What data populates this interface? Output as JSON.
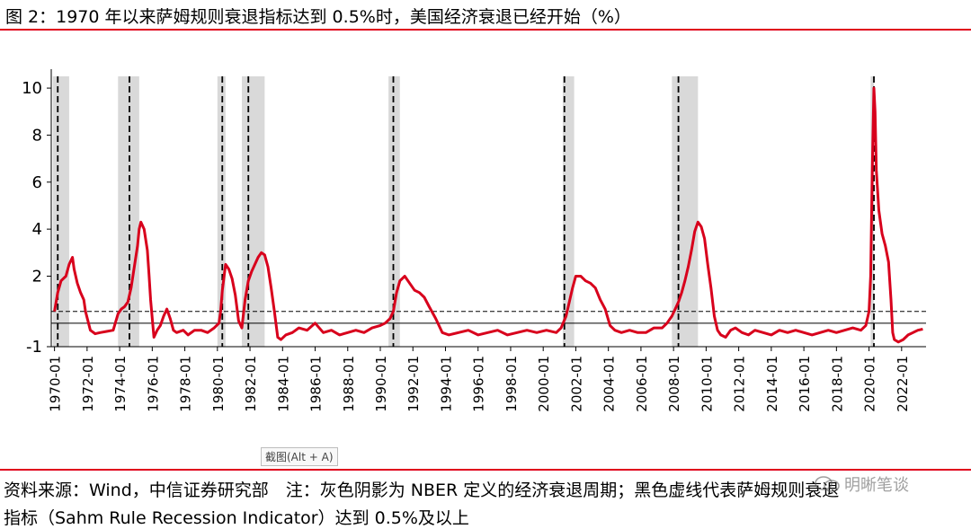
{
  "title": "图 2：1970 年以来萨姆规则衰退指标达到 0.5%时，美国经济衰退已经开始（%）",
  "tooltip": "截图(Alt + A)",
  "source": "资料来源：Wind，中信证券研究部　注：灰色阴影为 NBER 定义的经济衰退周期；黑色虚线代表萨姆规则衰退",
  "note": "指标（Sahm Rule Recession Indicator）达到 0.5%及以上",
  "watermark": "明晰笔谈",
  "colors": {
    "accent": "#e0001b",
    "series": "#d8001c",
    "shade": "#d9d9d9"
  },
  "chart_data": {
    "type": "line",
    "ylim": [
      -1,
      10.5
    ],
    "yticks": [
      -1,
      2,
      4,
      6,
      8,
      10
    ],
    "yticklabels": [
      "-1",
      "2",
      "4",
      "6",
      "8",
      "10"
    ],
    "xlim": [
      1969.8,
      2023.5
    ],
    "xticks": [
      1970,
      1972,
      1974,
      1976,
      1978,
      1980,
      1982,
      1984,
      1986,
      1988,
      1990,
      1992,
      1994,
      1996,
      1998,
      2000,
      2002,
      2004,
      2006,
      2008,
      2010,
      2012,
      2014,
      2016,
      2018,
      2020,
      2022
    ],
    "xticklabels": [
      "1970-01",
      "1972-01",
      "1974-01",
      "1976-01",
      "1978-01",
      "1980-01",
      "1982-01",
      "1984-01",
      "1986-01",
      "1988-01",
      "1990-01",
      "1992-01",
      "1994-01",
      "1996-01",
      "1998-01",
      "2000-01",
      "2002-01",
      "2004-01",
      "2006-01",
      "2008-01",
      "2010-01",
      "2012-01",
      "2014-01",
      "2016-01",
      "2018-01",
      "2020-01",
      "2022-01"
    ],
    "threshold": 0.5,
    "recessions": [
      [
        1969.9,
        1970.9
      ],
      [
        1973.9,
        1975.2
      ],
      [
        1980.0,
        1980.5
      ],
      [
        1981.5,
        1982.9
      ],
      [
        1990.5,
        1991.2
      ],
      [
        2001.2,
        2001.9
      ],
      [
        2007.9,
        2009.5
      ],
      [
        2020.1,
        2020.3
      ]
    ],
    "trigger_dates": [
      1970.2,
      1974.6,
      1980.3,
      1981.9,
      1990.8,
      2001.3,
      2008.3,
      2020.3
    ],
    "series": [
      {
        "x": [
          1970.0,
          1970.2,
          1970.4,
          1970.7,
          1970.9,
          1971.1,
          1971.2,
          1971.4,
          1971.6,
          1971.8,
          1971.9,
          1972.2,
          1972.5,
          1972.8,
          1973.2,
          1973.6,
          1973.9,
          1974.1,
          1974.3,
          1974.5,
          1974.7,
          1974.9,
          1975.1,
          1975.2,
          1975.3,
          1975.5,
          1975.7,
          1975.8,
          1975.9,
          1976.1,
          1976.3,
          1976.5,
          1976.7,
          1976.9,
          1977.1,
          1977.3,
          1977.5,
          1977.9,
          1978.2,
          1978.6,
          1979.0,
          1979.4,
          1979.8,
          1980.1,
          1980.2,
          1980.3,
          1980.5,
          1980.7,
          1980.9,
          1981.1,
          1981.3,
          1981.5,
          1981.7,
          1981.9,
          1982.1,
          1982.3,
          1982.5,
          1982.7,
          1982.9,
          1983.1,
          1983.3,
          1983.5,
          1983.7,
          1983.9,
          1984.2,
          1984.6,
          1985.0,
          1985.5,
          1986.0,
          1986.5,
          1987.0,
          1987.5,
          1988.0,
          1988.5,
          1989.0,
          1989.5,
          1990.0,
          1990.3,
          1990.6,
          1990.8,
          1991.0,
          1991.2,
          1991.5,
          1991.8,
          1992.1,
          1992.4,
          1992.7,
          1993.0,
          1993.4,
          1993.8,
          1994.2,
          1994.8,
          1995.4,
          1996.0,
          1996.6,
          1997.2,
          1997.8,
          1998.4,
          1999.0,
          1999.6,
          2000.2,
          2000.8,
          2001.1,
          2001.4,
          2001.6,
          2001.8,
          2002.0,
          2002.3,
          2002.6,
          2002.9,
          2003.2,
          2003.5,
          2003.8,
          2004.1,
          2004.4,
          2004.8,
          2005.3,
          2005.8,
          2006.3,
          2006.8,
          2007.3,
          2007.6,
          2007.9,
          2008.1,
          2008.3,
          2008.5,
          2008.7,
          2008.9,
          2009.1,
          2009.3,
          2009.5,
          2009.7,
          2009.9,
          2010.1,
          2010.3,
          2010.5,
          2010.7,
          2010.9,
          2011.2,
          2011.5,
          2011.8,
          2012.2,
          2012.6,
          2013.0,
          2013.5,
          2014.0,
          2014.5,
          2015.0,
          2015.5,
          2016.0,
          2016.5,
          2017.0,
          2017.5,
          2018.0,
          2018.5,
          2019.0,
          2019.5,
          2019.8,
          2020.0,
          2020.1,
          2020.2,
          2020.3,
          2020.37,
          2020.45,
          2020.6,
          2020.8,
          2021.0,
          2021.2,
          2021.35,
          2021.45,
          2021.55,
          2021.8,
          2022.1,
          2022.4,
          2022.7,
          2023.0,
          2023.3
        ],
        "y": [
          0.5,
          1.3,
          1.8,
          2.0,
          2.5,
          2.8,
          2.3,
          1.7,
          1.3,
          1.0,
          0.5,
          -0.3,
          -0.45,
          -0.4,
          -0.35,
          -0.3,
          0.4,
          0.6,
          0.7,
          0.9,
          1.5,
          2.4,
          3.3,
          4.0,
          4.3,
          4.0,
          3.1,
          2.1,
          1.0,
          -0.6,
          -0.3,
          -0.1,
          0.3,
          0.6,
          0.2,
          -0.3,
          -0.4,
          -0.3,
          -0.5,
          -0.3,
          -0.3,
          -0.4,
          -0.2,
          0.0,
          0.5,
          1.4,
          2.5,
          2.3,
          1.9,
          1.2,
          0.1,
          -0.2,
          1.0,
          1.8,
          2.2,
          2.5,
          2.8,
          3.0,
          2.9,
          2.4,
          1.5,
          0.5,
          -0.6,
          -0.7,
          -0.5,
          -0.4,
          -0.2,
          -0.3,
          0.0,
          -0.4,
          -0.3,
          -0.5,
          -0.4,
          -0.3,
          -0.4,
          -0.2,
          -0.1,
          0.0,
          0.2,
          0.5,
          1.3,
          1.8,
          2.0,
          1.7,
          1.4,
          1.3,
          1.1,
          0.7,
          0.2,
          -0.4,
          -0.5,
          -0.4,
          -0.3,
          -0.5,
          -0.4,
          -0.3,
          -0.5,
          -0.4,
          -0.3,
          -0.4,
          -0.3,
          -0.4,
          -0.2,
          0.3,
          0.9,
          1.5,
          2.0,
          2.0,
          1.8,
          1.7,
          1.5,
          1.0,
          0.6,
          -0.1,
          -0.3,
          -0.4,
          -0.3,
          -0.4,
          -0.4,
          -0.2,
          -0.2,
          0.0,
          0.3,
          0.6,
          0.9,
          1.3,
          1.8,
          2.4,
          3.1,
          3.9,
          4.3,
          4.1,
          3.6,
          2.5,
          1.5,
          0.3,
          -0.3,
          -0.5,
          -0.6,
          -0.3,
          -0.2,
          -0.4,
          -0.5,
          -0.3,
          -0.4,
          -0.5,
          -0.3,
          -0.4,
          -0.3,
          -0.4,
          -0.5,
          -0.4,
          -0.3,
          -0.4,
          -0.3,
          -0.2,
          -0.3,
          -0.1,
          0.5,
          2.0,
          6.5,
          10.0,
          9.0,
          6.5,
          4.8,
          3.8,
          3.3,
          2.6,
          1.0,
          -0.4,
          -0.7,
          -0.8,
          -0.7,
          -0.5,
          -0.4,
          -0.3,
          -0.25
        ]
      }
    ]
  }
}
